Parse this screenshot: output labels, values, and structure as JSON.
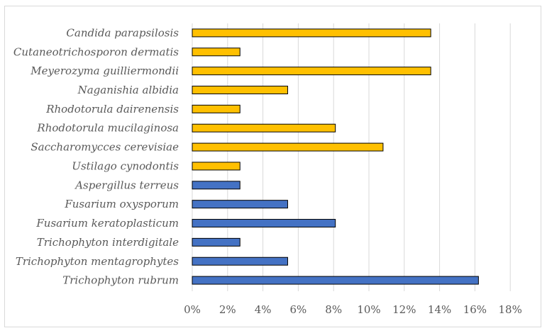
{
  "chart_data": {
    "type": "bar",
    "orientation": "horizontal",
    "title": "",
    "xlabel": "",
    "ylabel": "",
    "xlim": [
      0,
      18
    ],
    "x_ticks": [
      0,
      2,
      4,
      6,
      8,
      10,
      12,
      14,
      16,
      18
    ],
    "x_tick_labels": [
      "0%",
      "2%",
      "4%",
      "6%",
      "8%",
      "10%",
      "12%",
      "14%",
      "16%",
      "18%"
    ],
    "grid": "vertical major gridlines",
    "colors": {
      "yeast": "#FFC000",
      "mold": "#4472C4",
      "outline": "#000000",
      "grid": "#d9d9d9",
      "text": "#595959"
    },
    "categories": [
      "Candida parapsilosis",
      "Cutaneotrichosporon dermatis",
      "Meyerozyma guilliermondii",
      "Naganishia albidia",
      "Rhodotorula dairenensis",
      "Rhodotorula mucilaginosa",
      "Saccharomycces cerevisiae",
      "Ustilago cynodontis",
      "Aspergillus terreus",
      "Fusarium oxysporum",
      "Fusarium keratoplasticum",
      "Trichophyton interdigitale",
      "Trichophyton mentagrophytes",
      "Trichophyton rubrum"
    ],
    "values": [
      13.5,
      2.7,
      13.5,
      5.4,
      2.7,
      8.1,
      10.8,
      2.7,
      2.7,
      5.4,
      8.1,
      2.7,
      5.4,
      16.2
    ],
    "bar_groups": [
      "yeast",
      "yeast",
      "yeast",
      "yeast",
      "yeast",
      "yeast",
      "yeast",
      "yeast",
      "mold",
      "mold",
      "mold",
      "mold",
      "mold",
      "mold"
    ]
  }
}
